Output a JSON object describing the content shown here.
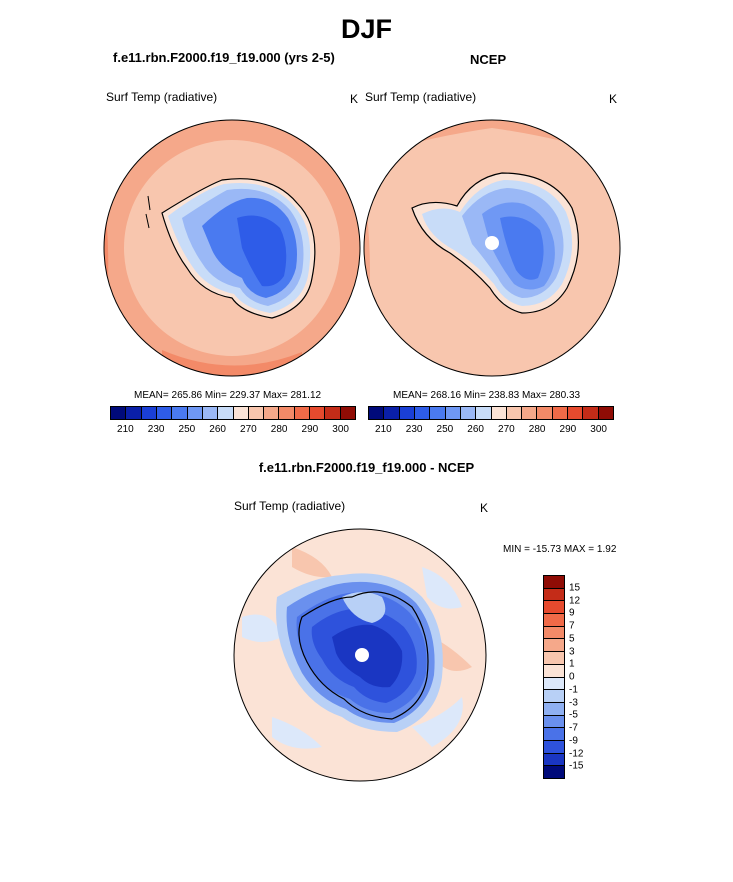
{
  "figure": {
    "title": "DJF"
  },
  "panels": {
    "model": {
      "title": "f.e11.rbn.F2000.f19_f19.000 (yrs 2-5)",
      "variable": "Surf Temp (radiative)",
      "units": "K",
      "stats": "MEAN= 265.86  Min= 229.37  Max= 281.12"
    },
    "obs": {
      "title": "NCEP",
      "variable": "Surf Temp (radiative)",
      "units": "K",
      "stats": "MEAN= 268.16  Min= 238.83  Max= 280.33"
    },
    "diff": {
      "title": "f.e11.rbn.F2000.f19_f19.000 - NCEP",
      "variable": "Surf Temp (radiative)",
      "units": "K",
      "minmax": "MIN = -15.73 MAX =   1.92"
    }
  },
  "colorbars": {
    "absolute": {
      "colors": [
        "#000a7a",
        "#0a1fa8",
        "#1a3fd6",
        "#2e5ce8",
        "#4a7af0",
        "#6f98f4",
        "#9ab8f6",
        "#c8dcf8",
        "#fbe3d6",
        "#f8c6ae",
        "#f5a88a",
        "#f38a68",
        "#f06a48",
        "#e64a2e",
        "#c42c18",
        "#8f0c05"
      ],
      "tick_labels": [
        "210",
        "230",
        "250",
        "260",
        "270",
        "280",
        "290",
        "300"
      ],
      "tick_positions": [
        1,
        3,
        5,
        7,
        9,
        11,
        13,
        15
      ]
    },
    "difference": {
      "colors_top_to_bottom": [
        "#8f0c05",
        "#c42c18",
        "#e64a2e",
        "#f06a48",
        "#f38a68",
        "#f5a88a",
        "#f8c6ae",
        "#fbe3d6",
        "#dce8fa",
        "#b8d0f6",
        "#8fb0f2",
        "#6a90ee",
        "#4a72e8",
        "#2e52dc",
        "#1a36c2",
        "#000a7a"
      ],
      "tick_labels": [
        "15",
        "12",
        "9",
        "7",
        "5",
        "3",
        "1",
        "0",
        "-1",
        "-3",
        "-5",
        "-7",
        "-9",
        "-12",
        "-15"
      ]
    }
  },
  "map_colors": {
    "ocean_warm": "#f8c6ae",
    "ocean_warmer": "#f5a88a",
    "ocean_edge": "#f38a68",
    "ice_edge": "#c8dcf8",
    "ice_light": "#9ab8f6",
    "ice_mid": "#6f98f4",
    "ice_deep": "#4a7af0",
    "ice_deepest": "#2e5ce8",
    "diff_bg": "#fbe3d6",
    "diff_light": "#dce8fa",
    "diff_mid": "#4a72e8",
    "diff_deep": "#2e52dc",
    "diff_deepest": "#1a36c2",
    "pole_dot": "#ffffff"
  }
}
